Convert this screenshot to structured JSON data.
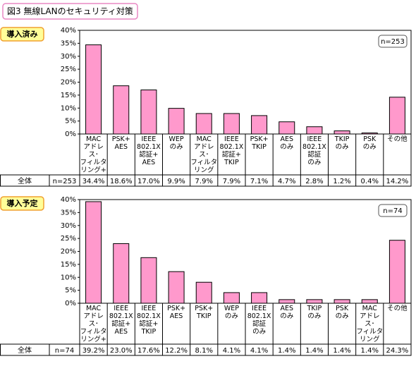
{
  "page_title": "図3 無線LANのセキュリティ対策",
  "chart_data": [
    {
      "type": "bar",
      "label": "導入済み",
      "n_label": "n=253",
      "row_label": "全体",
      "color": "#ff99cc",
      "categories": [
        "MAC\nアドレス･\nフィルタ\nリング+\nWEP",
        "PSK+\nAES",
        "IEEE\n802.1X\n認証+\nAES",
        "WEP\nのみ",
        "MAC\nアドレス･\nフィルタ\nリング\nのみ",
        "IEEE\n802.1X\n認証+\nTKIP",
        "PSK+\nTKIP",
        "AES\nのみ",
        "IEEE\n802.1X\n認証\nのみ",
        "TKIP\nのみ",
        "PSK\nのみ",
        "その他"
      ],
      "values": [
        34.4,
        18.6,
        17.0,
        9.9,
        7.9,
        7.9,
        7.1,
        4.7,
        2.8,
        1.2,
        0.4,
        14.2
      ],
      "value_labels": [
        "34.4%",
        "18.6%",
        "17.0%",
        "9.9%",
        "7.9%",
        "7.9%",
        "7.1%",
        "4.7%",
        "2.8%",
        "1.2%",
        "0.4%",
        "14.2%"
      ],
      "ylim": [
        0,
        40
      ],
      "yticks": [
        {
          "value": 0,
          "label": "0%"
        },
        {
          "value": 5,
          "label": "5%"
        },
        {
          "value": 10,
          "label": "10%"
        },
        {
          "value": 15,
          "label": "15%"
        },
        {
          "value": 20,
          "label": "20%"
        },
        {
          "value": 25,
          "label": "25%"
        },
        {
          "value": 30,
          "label": "30%"
        },
        {
          "value": 35,
          "label": "35%"
        },
        {
          "value": 40,
          "label": "40%"
        }
      ],
      "grid": false
    },
    {
      "type": "bar",
      "label": "導入予定",
      "n_label": "n=74",
      "row_label": "全体",
      "color": "#ff99cc",
      "categories": [
        "MAC\nアドレス･\nフィルタ\nリング+\nWEP",
        "IEEE\n802.1X\n認証+\nAES",
        "IEEE\n802.1X\n認証+\nTKIP",
        "PSK+\nAES",
        "PSK+\nTKIP",
        "WEP\nのみ",
        "IEEE\n802.1X\n認証\nのみ",
        "AES\nのみ",
        "TKIP\nのみ",
        "PSK\nのみ",
        "MAC\nアドレス･\nフィルタ\nリング\nのみ",
        "その他"
      ],
      "values": [
        39.2,
        23.0,
        17.6,
        12.2,
        8.1,
        4.1,
        4.1,
        1.4,
        1.4,
        1.4,
        1.4,
        24.3
      ],
      "value_labels": [
        "39.2%",
        "23.0%",
        "17.6%",
        "12.2%",
        "8.1%",
        "4.1%",
        "4.1%",
        "1.4%",
        "1.4%",
        "1.4%",
        "1.4%",
        "24.3%"
      ],
      "ylim": [
        0,
        40
      ],
      "yticks": [
        {
          "value": 0,
          "label": "0%"
        },
        {
          "value": 5,
          "label": "5%"
        },
        {
          "value": 10,
          "label": "10%"
        },
        {
          "value": 15,
          "label": "15%"
        },
        {
          "value": 20,
          "label": "20%"
        },
        {
          "value": 25,
          "label": "25%"
        },
        {
          "value": 30,
          "label": "30%"
        },
        {
          "value": 35,
          "label": "35%"
        },
        {
          "value": 40,
          "label": "40%"
        }
      ],
      "grid": false
    }
  ]
}
